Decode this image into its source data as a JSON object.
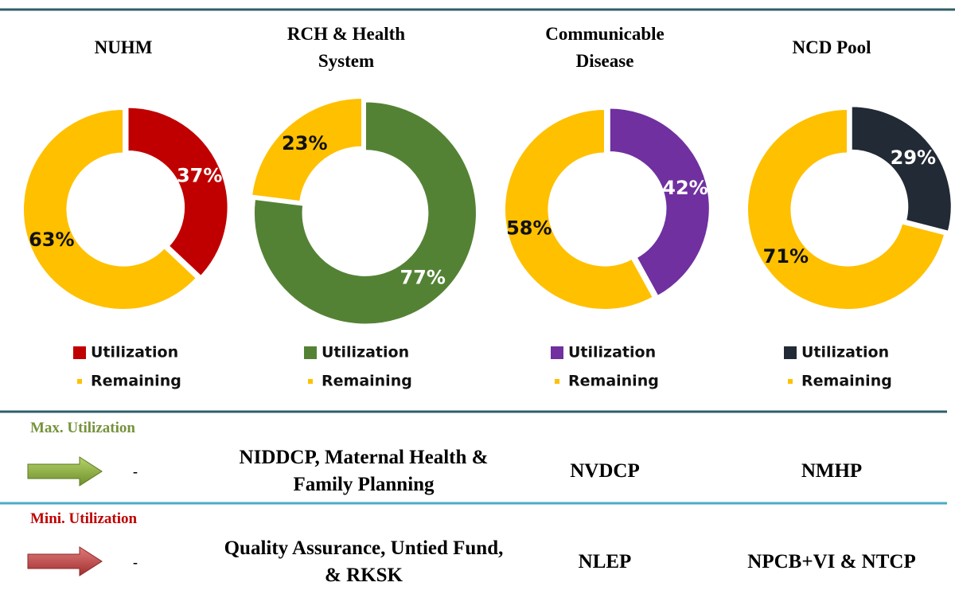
{
  "chart_data": [
    {
      "type": "donut",
      "title": "NUHM",
      "categories": [
        "Utilization",
        "Remaining"
      ],
      "values": [
        37,
        63
      ],
      "value_labels": [
        "37%",
        "63%"
      ],
      "colors": [
        "#c00000",
        "#ffc000"
      ]
    },
    {
      "type": "donut",
      "title": "RCH & Health System",
      "categories": [
        "Utilization",
        "Remaining"
      ],
      "values": [
        77,
        23
      ],
      "value_labels": [
        "77%",
        "23%"
      ],
      "colors": [
        "#548235",
        "#ffc000"
      ]
    },
    {
      "type": "donut",
      "title": "Communicable Disease",
      "categories": [
        "Utilization",
        "Remaining"
      ],
      "values": [
        42,
        58
      ],
      "value_labels": [
        "42%",
        "58%"
      ],
      "colors": [
        "#7030a0",
        "#ffc000"
      ]
    },
    {
      "type": "donut",
      "title": "NCD Pool",
      "categories": [
        "Utilization",
        "Remaining"
      ],
      "values": [
        29,
        71
      ],
      "value_labels": [
        "29%",
        "71%"
      ],
      "colors": [
        "#222a35",
        "#ffc000"
      ]
    }
  ],
  "table": {
    "rows": [
      {
        "label": "Max. Utilization",
        "cells": [
          "-",
          "NIDDCP, Maternal Health & Family Planning",
          "NVDCP",
          "NMHP"
        ]
      },
      {
        "label": "Mini. Utilization",
        "cells": [
          "-",
          "Quality Assurance, Untied Fund, & RKSK",
          "NLEP",
          "NPCB+VI & NTCP"
        ]
      }
    ]
  }
}
